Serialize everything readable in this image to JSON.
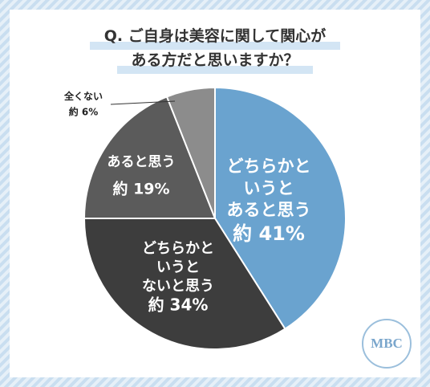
{
  "chart_data": {
    "type": "pie",
    "title": "Q. ご自身は美容に関して関心が\nある方だと思いますか？",
    "categories": [
      "どちらかと\nいうと\nあると思う",
      "どちらかと\nいうと\nないと思う",
      "あると思う",
      "全くない"
    ],
    "values": [
      41,
      34,
      19,
      6
    ],
    "value_labels": [
      "約 41%",
      "約 34%",
      "約 19%",
      "約 6%"
    ],
    "colors": [
      "#6aa3cf",
      "#3d3d3d",
      "#5b5b5b",
      "#8c8c8c"
    ],
    "logo": "MBC"
  }
}
